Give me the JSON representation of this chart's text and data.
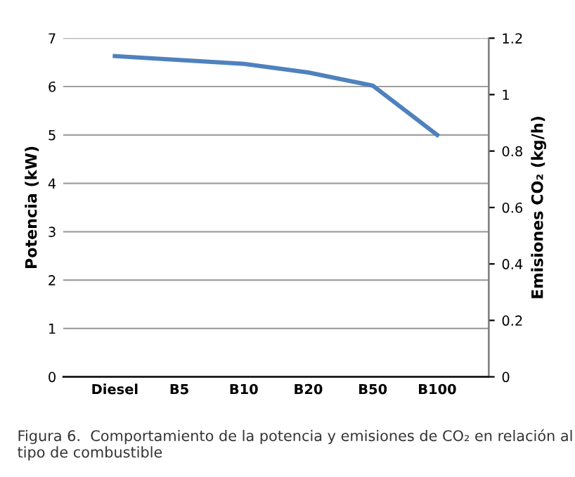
{
  "chart_data": {
    "type": "line",
    "ylabel": "Potencia (kW)",
    "y2label": "Emisiones CO₂ (kg/h)",
    "categories": [
      "Diesel",
      "B5",
      "B10",
      "B20",
      "B50",
      "B100"
    ],
    "series": [
      {
        "color": "#4f81bd",
        "values": [
          6.63,
          6.55,
          6.47,
          6.29,
          6.02,
          5.0
        ]
      }
    ],
    "ylim": [
      0,
      7
    ],
    "yticks": [
      0,
      1,
      2,
      3,
      4,
      5,
      6,
      7
    ],
    "y2lim": [
      0,
      1.2
    ],
    "y2ticks": [
      0,
      0.2,
      0.4,
      0.6,
      0.8,
      1,
      1.2
    ],
    "grid": "y",
    "legend": false,
    "annotations": [
      "Figura 6.  Comportamiento de la potencia y emisiones de CO₂ en relación al tipo de combustible"
    ]
  }
}
